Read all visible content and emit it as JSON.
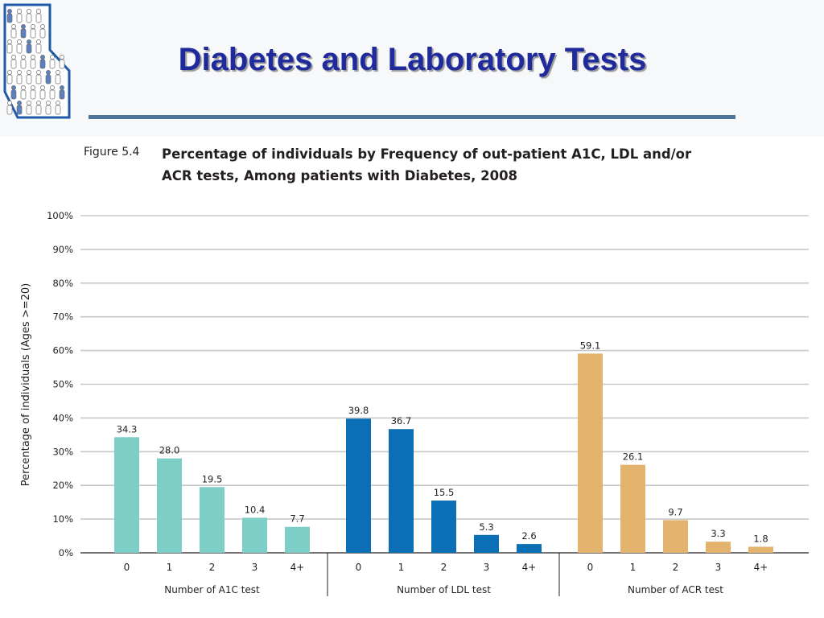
{
  "slide": {
    "title": "Diabetes and Laboratory Tests"
  },
  "figure": {
    "label": "Figure 5.4",
    "title_line1": "Percentage of individuals by Frequency of out-patient A1C, LDL and/or",
    "title_line2": "ACR tests, Among patients with Diabetes, 2008"
  },
  "colors": {
    "title_text": "#1f2a9c",
    "title_rule": "#51749a",
    "logo_border": "#1e5aa8",
    "a1c": "#7ecec8",
    "ldl": "#0a6fb4",
    "acr": "#e3b26d",
    "gridline": "#c8c8c8"
  },
  "chart_data": {
    "type": "bar",
    "title": "Percentage of individuals by Frequency of out-patient A1C, LDL and/or ACR tests, Among patients with Diabetes, 2008",
    "ylabel": "Percentage of individuals  (Ages >=20)",
    "ylim": [
      0,
      100
    ],
    "yticks": [
      "0%",
      "10%",
      "20%",
      "30%",
      "40%",
      "50%",
      "60%",
      "70%",
      "80%",
      "90%",
      "100%"
    ],
    "grid": true,
    "groups": [
      {
        "name": "Number of A1C test",
        "categories": [
          "0",
          "1",
          "2",
          "3",
          "4+"
        ],
        "values": [
          34.3,
          28.0,
          19.5,
          10.4,
          7.7
        ],
        "labels": [
          "34.3",
          "28.0",
          "19.5",
          "10.4",
          "7.7"
        ],
        "color": "#7ecec8"
      },
      {
        "name": "Number of LDL test",
        "categories": [
          "0",
          "1",
          "2",
          "3",
          "4+"
        ],
        "values": [
          39.8,
          36.7,
          15.5,
          5.3,
          2.6
        ],
        "labels": [
          "39.8",
          "36.7",
          "15.5",
          "5.3",
          "2.6"
        ],
        "color": "#0a6fb4"
      },
      {
        "name": "Number of ACR test",
        "categories": [
          "0",
          "1",
          "2",
          "3",
          "4+"
        ],
        "values": [
          59.1,
          26.1,
          9.7,
          3.3,
          1.8
        ],
        "labels": [
          "59.1",
          "26.1",
          "9.7",
          "3.3",
          "1.8"
        ],
        "color": "#e3b26d"
      }
    ]
  }
}
